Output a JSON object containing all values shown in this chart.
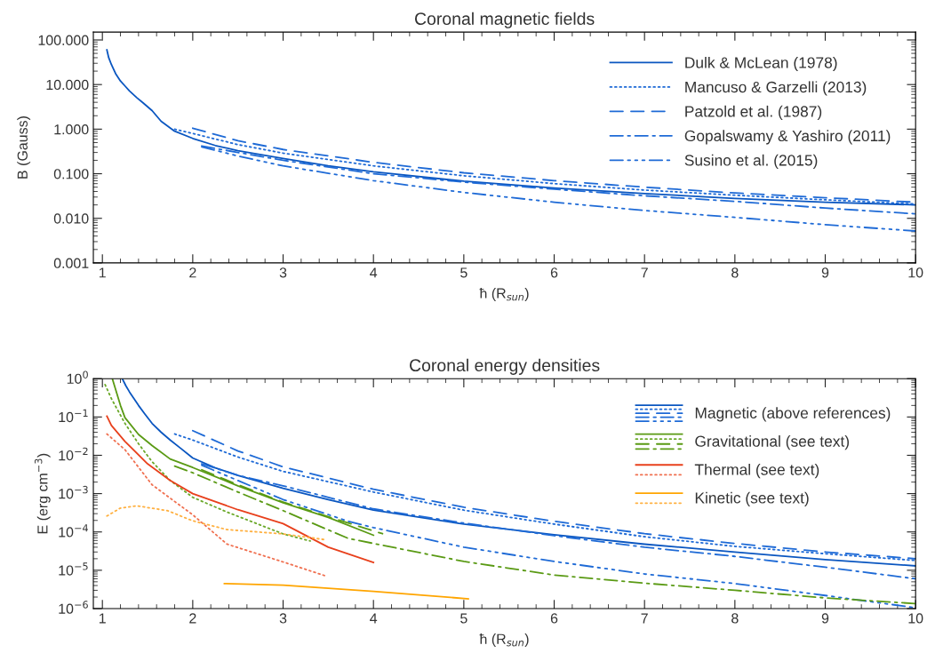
{
  "chart_data": [
    {
      "type": "line",
      "title": "Coronal magnetic fields",
      "xlabel": "ħ (R$_{sun}$)",
      "ylabel": "B (Gauss)",
      "log": "y",
      "legend": "top right",
      "xlim": [
        0.9,
        10
      ],
      "xticks": [
        1,
        2,
        3,
        4,
        5,
        6,
        7,
        8,
        9,
        10
      ],
      "ylim": [
        0.001,
        150
      ],
      "yticks": [
        {
          "value": 0.001,
          "label": "0.001"
        },
        {
          "value": 0.01,
          "label": "0.010"
        },
        {
          "value": 0.1,
          "label": "0.100"
        },
        {
          "value": 1,
          "label": "1.000"
        },
        {
          "value": 10,
          "label": "10.000"
        },
        {
          "value": 100,
          "label": "100.000"
        }
      ],
      "series": [
        {
          "name": "Dulk & McLean (1978)",
          "color": "#0a56c0",
          "line_style": "solid",
          "x": [
            1.05,
            1.07,
            1.1,
            1.15,
            1.2,
            1.25,
            1.3,
            1.38,
            1.45,
            1.55,
            1.65,
            1.8,
            2,
            2.25,
            2.5,
            3,
            3.5,
            4,
            5,
            6,
            7,
            8,
            9,
            10
          ],
          "values": [
            60,
            40,
            28,
            17,
            12,
            9.3,
            7.2,
            5.1,
            3.9,
            2.6,
            1.5,
            0.9,
            0.62,
            0.43,
            0.33,
            0.22,
            0.15,
            0.11,
            0.068,
            0.048,
            0.036,
            0.028,
            0.023,
            0.02
          ]
        },
        {
          "name": "Mancuso & Garzelli (2013)",
          "color": "#1e6ad6",
          "line_style": "dotted",
          "x": [
            1.8,
            2,
            2.5,
            3,
            4,
            5,
            6,
            7,
            8,
            9,
            10
          ],
          "values": [
            1.0,
            0.8,
            0.45,
            0.29,
            0.15,
            0.09,
            0.06,
            0.043,
            0.033,
            0.026,
            0.021
          ]
        },
        {
          "name": "Patzold et al. (1987)",
          "color": "#1e6ad6",
          "line_style": "dashed",
          "x": [
            2,
            2.5,
            3,
            4,
            5,
            6,
            7,
            8,
            9,
            10
          ],
          "values": [
            1.05,
            0.55,
            0.35,
            0.18,
            0.105,
            0.07,
            0.05,
            0.037,
            0.029,
            0.023
          ]
        },
        {
          "name": "Gopalswamy & Yashiro (2011)",
          "color": "#1e6ad6",
          "line_style": "dashdot",
          "x": [
            2.1,
            2.5,
            3,
            4,
            5,
            6,
            7,
            8,
            9,
            10
          ],
          "values": [
            0.42,
            0.3,
            0.2,
            0.1,
            0.065,
            0.045,
            0.032,
            0.024,
            0.017,
            0.0126
          ]
        },
        {
          "name": "Susino et al. (2015)",
          "color": "#1e6ad6",
          "line_style": "dashdotdotdot",
          "x": [
            2.1,
            2.5,
            3,
            4,
            5,
            6,
            7,
            8,
            9,
            10
          ],
          "values": [
            0.4,
            0.25,
            0.15,
            0.07,
            0.038,
            0.023,
            0.015,
            0.0105,
            0.0072,
            0.0052
          ]
        }
      ]
    },
    {
      "type": "line",
      "title": "Coronal energy densities",
      "xlabel": "ħ (R$_{sun}$)",
      "ylabel": "E (erg cm$^{−3}$)",
      "log": "y",
      "legend": "top right",
      "xlim": [
        0.9,
        10
      ],
      "xticks": [
        1,
        2,
        3,
        4,
        5,
        6,
        7,
        8,
        9,
        10
      ],
      "ylim": [
        1e-06,
        1
      ],
      "yticks": [
        {
          "value": 1e-06,
          "label": "10$^{−6}$"
        },
        {
          "value": 1e-05,
          "label": "10$^{−5}$"
        },
        {
          "value": 0.0001,
          "label": "10$^{−4}$"
        },
        {
          "value": 0.001,
          "label": "10$^{−3}$"
        },
        {
          "value": 0.01,
          "label": "10$^{−2}$"
        },
        {
          "value": 0.1,
          "label": "10$^{−1}$"
        },
        {
          "value": 1,
          "label": "10$^{0}$"
        }
      ],
      "series": [
        {
          "name": "Magnetic (above references)",
          "color": "#0a56c0",
          "line_style": "solid",
          "x": [
            1.22,
            1.26,
            1.3,
            1.35,
            1.4,
            1.47,
            1.55,
            1.65,
            1.75,
            1.87,
            2,
            2.25,
            2.5,
            3,
            3.5,
            4,
            5,
            6,
            7,
            8,
            9,
            10
          ],
          "values": [
            1.0,
            0.65,
            0.45,
            0.3,
            0.2,
            0.12,
            0.068,
            0.04,
            0.025,
            0.015,
            0.0085,
            0.0047,
            0.003,
            0.00138,
            0.0007,
            0.00037,
            0.00016,
            8.5e-05,
            4.8e-05,
            3e-05,
            1.9e-05,
            1.3e-05
          ]
        },
        {
          "color": "#1e6ad6",
          "line_style": "dotted",
          "x": [
            1.8,
            2,
            2.5,
            3,
            4,
            5,
            6,
            7,
            8,
            9,
            10
          ],
          "values": [
            0.036,
            0.025,
            0.009,
            0.0038,
            0.0011,
            0.00037,
            0.00016,
            7.5e-05,
            4.2e-05,
            2.7e-05,
            1.8e-05
          ]
        },
        {
          "color": "#1e6ad6",
          "line_style": "dashed",
          "x": [
            2,
            2.5,
            3,
            4,
            5,
            6,
            7,
            8,
            9,
            10
          ],
          "values": [
            0.044,
            0.013,
            0.005,
            0.0013,
            0.00044,
            0.00019,
            9e-05,
            5e-05,
            3e-05,
            2e-05
          ]
        },
        {
          "color": "#1e6ad6",
          "line_style": "dashdot",
          "x": [
            2.1,
            2.5,
            3,
            4,
            5,
            6,
            7,
            8,
            9,
            10
          ],
          "values": [
            0.006,
            0.003,
            0.0016,
            0.0004,
            0.00017,
            8e-05,
            4e-05,
            2.3e-05,
            1.2e-05,
            6e-06
          ]
        },
        {
          "color": "#1e6ad6",
          "line_style": "dashdotdotdot",
          "x": [
            2.1,
            2.5,
            3,
            3.72,
            4,
            5,
            6,
            7,
            8,
            9,
            10
          ],
          "values": [
            0.0055,
            0.0022,
            0.0007,
            0.00019,
            0.00013,
            4e-05,
            1.7e-05,
            8e-06,
            4.5e-06,
            2.2e-06,
            1.05e-06
          ]
        },
        {
          "name": "Gravitational (see text)",
          "color": "#5a9a14",
          "line_style": "solid",
          "x": [
            1.11,
            1.2,
            1.25,
            1.4,
            1.55,
            1.75,
            2,
            2.5,
            3,
            3.5,
            4
          ],
          "values": [
            1.0,
            0.2,
            0.096,
            0.035,
            0.018,
            0.008,
            0.0048,
            0.0016,
            0.00058,
            0.00024,
            8.2e-05
          ]
        },
        {
          "color": "#6aa828",
          "line_style": "dotted",
          "x": [
            1.03,
            1.1,
            1.25,
            1.4,
            1.55,
            1.75,
            2,
            2.38,
            3,
            3.3
          ],
          "values": [
            0.7,
            0.3,
            0.068,
            0.02,
            0.0068,
            0.0022,
            0.0008,
            0.00033,
            8.9e-05,
            5.8e-05
          ]
        },
        {
          "color": "#5a9a14",
          "line_style": "dashed",
          "x": [
            2.1,
            2.5,
            3,
            3.5,
            4.1
          ],
          "values": [
            0.0042,
            0.0017,
            0.0006,
            0.00025,
            9e-05
          ]
        },
        {
          "color": "#5a9a14",
          "line_style": "dashdot",
          "x": [
            1.8,
            2,
            2.5,
            3,
            3.72,
            4.12,
            5,
            6,
            7,
            8,
            9,
            10
          ],
          "values": [
            0.0052,
            0.0035,
            0.0011,
            0.00036,
            6.8e-05,
            4.4e-05,
            1.7e-05,
            7.5e-06,
            4.6e-06,
            3e-06,
            1.9e-06,
            1.35e-06
          ]
        },
        {
          "name": "Thermal (see text)",
          "color": "#e8401c",
          "line_style": "solid",
          "x": [
            1.05,
            1.1,
            1.25,
            1.5,
            1.75,
            2,
            2.5,
            3,
            3.5,
            4
          ],
          "values": [
            0.105,
            0.06,
            0.023,
            0.006,
            0.0022,
            0.001,
            0.00038,
            0.000165,
            4e-05,
            1.6e-05
          ]
        },
        {
          "color": "#f07050",
          "line_style": "dotted",
          "x": [
            1.05,
            1.25,
            1.55,
            2,
            2.38,
            3,
            3.48
          ],
          "values": [
            0.036,
            0.014,
            0.0017,
            0.00028,
            4.8e-05,
            1.65e-05,
            7e-06
          ]
        },
        {
          "name": "Kinetic (see text)",
          "color": "#ffa500",
          "line_style": "solid",
          "x": [
            2.35,
            3,
            4,
            5.05
          ],
          "values": [
            4.5e-06,
            4.1e-06,
            2.8e-06,
            1.8e-06
          ]
        },
        {
          "color": "#ffb040",
          "line_style": "dotted",
          "x": [
            1.05,
            1.2,
            1.38,
            1.72,
            2,
            2.38,
            3,
            3.48
          ],
          "values": [
            0.00026,
            0.00042,
            0.00048,
            0.00036,
            0.000195,
            0.000115,
            8.9e-05,
            6.2e-05
          ]
        }
      ]
    }
  ]
}
